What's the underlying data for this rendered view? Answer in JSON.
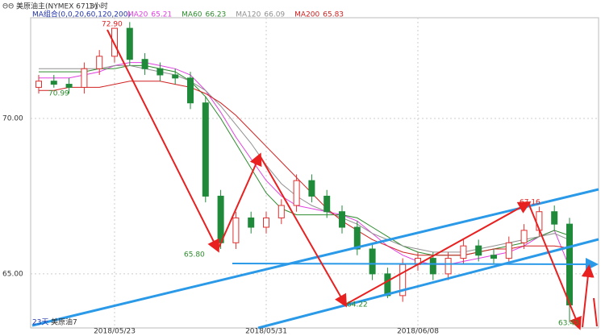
{
  "chart_data": {
    "type": "candlestick",
    "header": {
      "icon": "ΘΘ",
      "symbol": "美原油主(NYMEX 6713)",
      "period": "1小时",
      "ma_group": "MA组合(0,0,20,60,120,200)"
    },
    "footer": {
      "days": "23天",
      "name": "美原油7"
    },
    "categories": [
      null,
      null,
      null,
      null,
      null,
      "2018/05/23",
      null,
      null,
      null,
      null,
      null,
      null,
      null,
      null,
      null,
      "2018/05/31",
      null,
      null,
      null,
      null,
      null,
      null,
      null,
      null,
      null,
      "2018/06/08",
      null,
      null,
      null,
      null,
      null,
      null,
      null,
      null,
      null,
      null
    ],
    "open": [
      71.0,
      71.2,
      71.1,
      71.0,
      71.6,
      72.0,
      72.9,
      71.9,
      71.6,
      71.4,
      71.3,
      70.5,
      67.5,
      66.0,
      66.8,
      66.5,
      66.8,
      67.2,
      68.0,
      67.5,
      67.0,
      66.5,
      65.8,
      65.0,
      64.3,
      65.3,
      65.5,
      65.0,
      65.5,
      65.9,
      65.6,
      65.5,
      66.0,
      66.4,
      67.0,
      66.6
    ],
    "high": [
      71.4,
      71.4,
      71.3,
      71.8,
      72.2,
      72.9,
      73.1,
      72.1,
      71.8,
      71.6,
      71.5,
      70.7,
      67.7,
      67.0,
      67.0,
      67.0,
      67.4,
      68.2,
      68.2,
      67.7,
      67.2,
      66.7,
      66.0,
      65.2,
      65.5,
      65.7,
      65.7,
      65.7,
      66.1,
      66.1,
      65.8,
      66.2,
      66.6,
      67.16,
      67.2,
      66.8
    ],
    "low": [
      70.8,
      70.99,
      70.8,
      70.8,
      71.4,
      71.8,
      71.7,
      71.4,
      71.2,
      71.1,
      70.3,
      67.3,
      65.8,
      65.8,
      66.3,
      66.3,
      66.6,
      67.0,
      67.3,
      66.8,
      66.3,
      65.6,
      64.8,
      64.22,
      64.1,
      65.1,
      64.8,
      64.8,
      65.3,
      65.4,
      65.3,
      65.3,
      65.8,
      66.2,
      66.4,
      63.43
    ],
    "close": [
      71.2,
      71.1,
      71.0,
      71.6,
      72.0,
      72.9,
      71.9,
      71.6,
      71.4,
      71.3,
      70.5,
      67.5,
      66.0,
      66.8,
      66.5,
      66.8,
      67.2,
      68.0,
      67.5,
      67.0,
      66.5,
      65.8,
      65.0,
      64.3,
      65.3,
      65.5,
      65.0,
      65.5,
      65.9,
      65.6,
      65.5,
      66.0,
      66.4,
      67.0,
      66.6,
      64.0
    ],
    "up_color": "#e03030",
    "down_color": "#1f8a3a",
    "series": [
      {
        "name": "MA20",
        "color": "#e040e0",
        "values": [
          71.3,
          71.3,
          71.3,
          71.4,
          71.5,
          71.7,
          71.8,
          71.8,
          71.7,
          71.6,
          71.4,
          70.9,
          70.2,
          69.4,
          68.7,
          68.0,
          67.5,
          67.2,
          67.1,
          67.0,
          66.9,
          66.7,
          66.3,
          65.9,
          65.6,
          65.4,
          65.3,
          65.3,
          65.4,
          65.5,
          65.6,
          65.7,
          65.9,
          66.2,
          66.4,
          65.21
        ]
      },
      {
        "name": "MA60",
        "color": "#2e8b2e",
        "values": [
          71.5,
          71.5,
          71.5,
          71.5,
          71.6,
          71.6,
          71.7,
          71.7,
          71.6,
          71.5,
          71.2,
          70.7,
          70.0,
          69.2,
          68.4,
          67.6,
          67.1,
          66.9,
          66.9,
          66.9,
          66.9,
          66.8,
          66.5,
          66.2,
          65.9,
          65.7,
          65.6,
          65.6,
          65.6,
          65.7,
          65.8,
          65.9,
          66.0,
          66.2,
          66.4,
          66.23
        ]
      },
      {
        "name": "MA120",
        "color": "#909090",
        "values": [
          71.6,
          71.6,
          71.6,
          71.6,
          71.6,
          71.7,
          71.7,
          71.6,
          71.5,
          71.4,
          71.2,
          70.9,
          70.4,
          69.8,
          69.2,
          68.5,
          67.9,
          67.5,
          67.2,
          67.0,
          66.8,
          66.6,
          66.3,
          66.1,
          65.9,
          65.8,
          65.7,
          65.7,
          65.7,
          65.8,
          65.9,
          66.0,
          66.1,
          66.2,
          66.3,
          66.09
        ]
      },
      {
        "name": "MA200",
        "color": "#d02020",
        "values": [
          70.9,
          70.9,
          71.0,
          71.0,
          71.0,
          71.1,
          71.2,
          71.2,
          71.2,
          71.1,
          71.0,
          70.8,
          70.5,
          70.1,
          69.6,
          69.1,
          68.6,
          68.1,
          67.6,
          67.1,
          66.7,
          66.4,
          66.1,
          65.9,
          65.7,
          65.6,
          65.6,
          65.6,
          65.6,
          65.7,
          65.8,
          65.8,
          65.9,
          65.9,
          65.9,
          65.83
        ]
      }
    ],
    "annotations": [
      "72.90",
      "70.99",
      "65.80",
      "64.22",
      "67.16",
      "63.43"
    ],
    "ylim": [
      63.26,
      73.24
    ],
    "yticks": [
      {
        "value": 70,
        "label": "70.00"
      },
      {
        "value": 65,
        "label": "65.00"
      }
    ],
    "grid": true
  }
}
